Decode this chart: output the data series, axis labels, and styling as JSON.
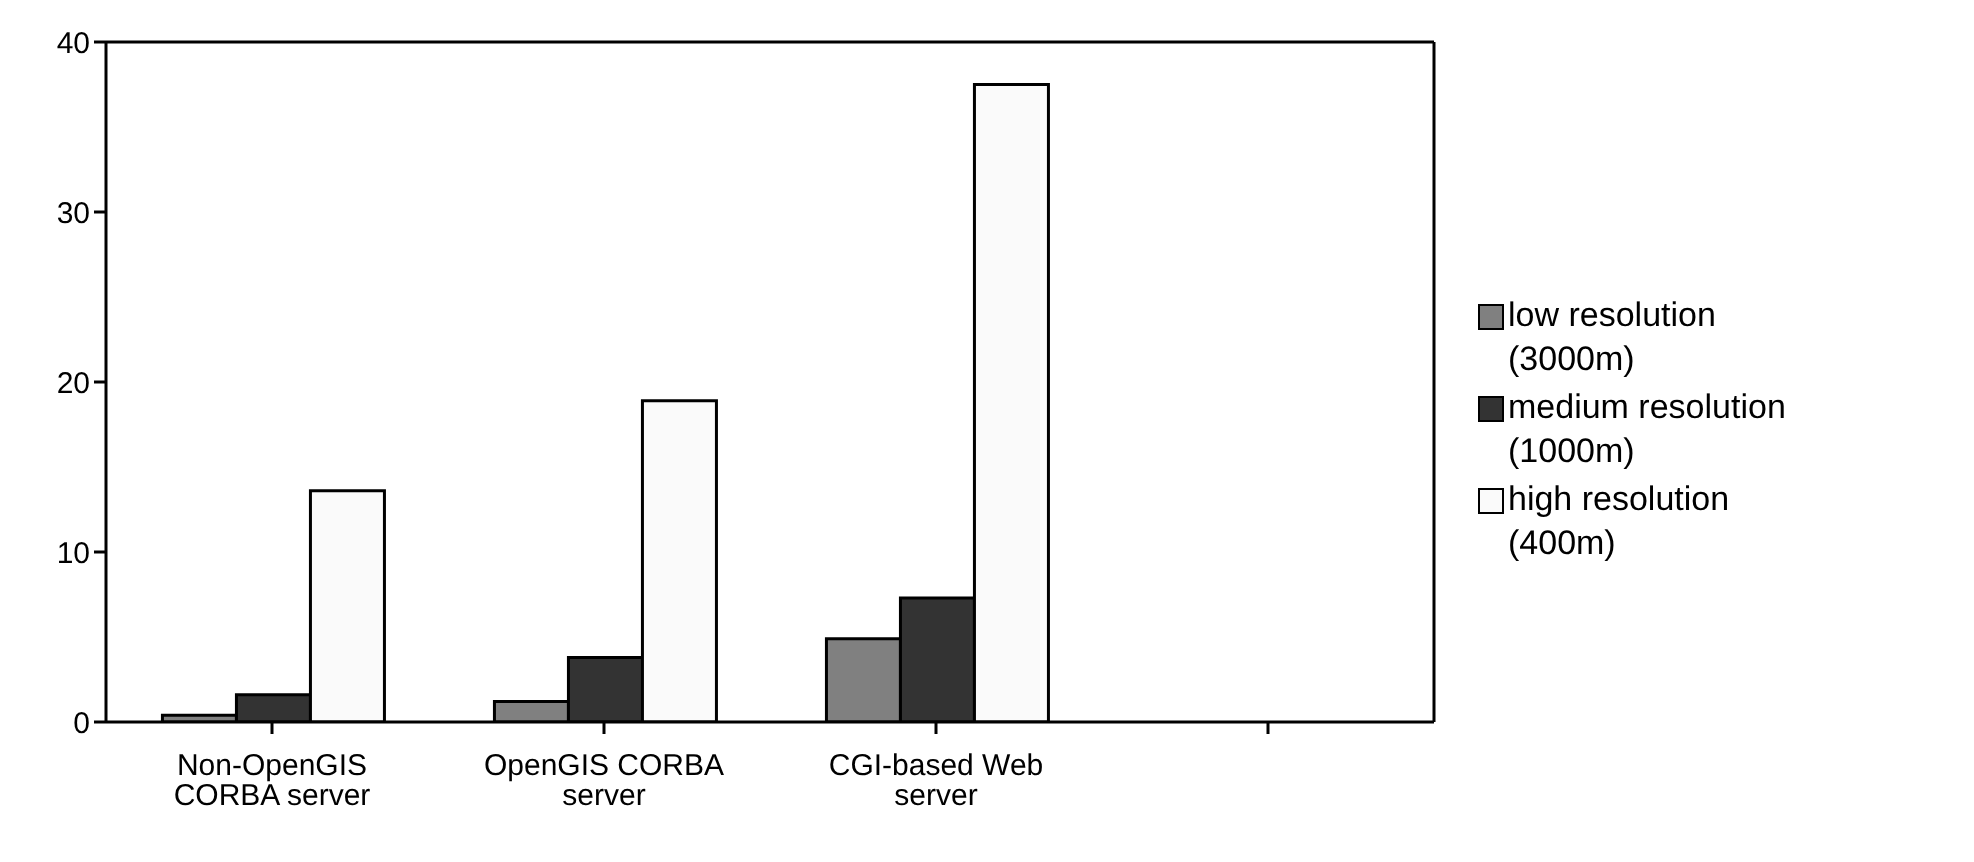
{
  "chart_data": {
    "type": "bar",
    "categories": [
      "Non-OpenGIS CORBA server",
      "OpenGIS CORBA server",
      "CGI-based Web server",
      null
    ],
    "series": [
      {
        "name": "low resolution (3000m)",
        "color": "#808080",
        "values": [
          0.4,
          1.2,
          4.9,
          null
        ]
      },
      {
        "name": "medium resolution (1000m)",
        "color": "#333333",
        "values": [
          1.6,
          3.8,
          7.3,
          null
        ]
      },
      {
        "name": "high resolution (400m)",
        "color": "#fafafa",
        "values": [
          13.6,
          18.9,
          37.5,
          null
        ]
      }
    ],
    "ylim": [
      0,
      40
    ],
    "yticks": [
      0,
      10,
      20,
      30,
      40
    ],
    "legend": "right"
  }
}
